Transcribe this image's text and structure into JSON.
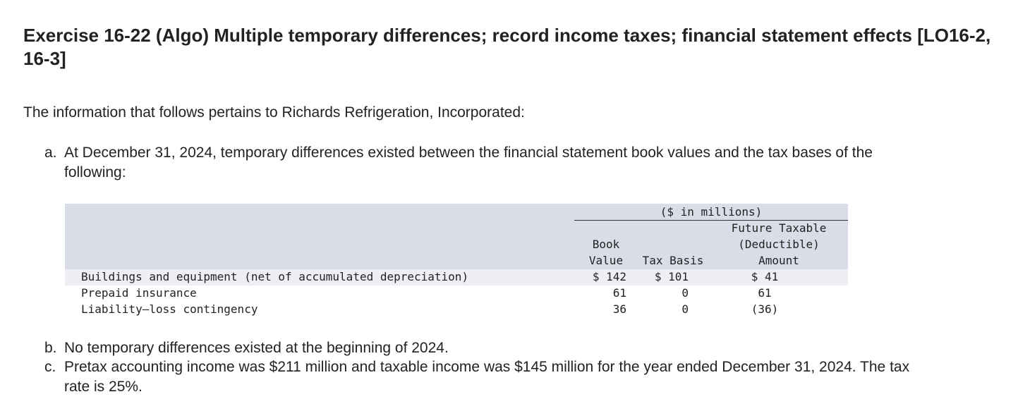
{
  "header": {
    "title": "Exercise 16-22 (Algo) Multiple temporary differences; record income taxes; financial statement effects [LO16-2, 16-3]"
  },
  "intro": "The information that follows pertains to Richards Refrigeration, Incorporated:",
  "items": {
    "a": {
      "marker": "a.",
      "line1": "At December 31, 2024, temporary differences existed between the financial statement book values and the tax bases of the",
      "line2": "following:"
    },
    "b": {
      "marker": "b.",
      "text": "No temporary differences existed at the beginning of 2024."
    },
    "c": {
      "marker": "c.",
      "line1": "Pretax accounting income was $211 million and taxable income was $145 million for the year ended December 31, 2024. The tax",
      "line2": "rate is 25%."
    }
  },
  "table": {
    "span_header": "($ in millions)",
    "columns": {
      "book": [
        "Book",
        "Value"
      ],
      "tax": [
        "Tax Basis"
      ],
      "future": [
        "Future Taxable",
        "(Deductible)",
        "Amount"
      ]
    },
    "rows": [
      {
        "label": "Buildings and equipment (net of accumulated depreciation)",
        "book": "$ 142",
        "tax": "$ 101",
        "future": "$ 41"
      },
      {
        "label": "Prepaid insurance",
        "book": "61",
        "tax": "0",
        "future": "61"
      },
      {
        "label": "Liability—loss contingency",
        "book": "36",
        "tax": "0",
        "future": "(36)"
      }
    ]
  },
  "colors": {
    "header_band": "#d9dde8",
    "alt_row": "#edeff4",
    "text": "#222222"
  }
}
